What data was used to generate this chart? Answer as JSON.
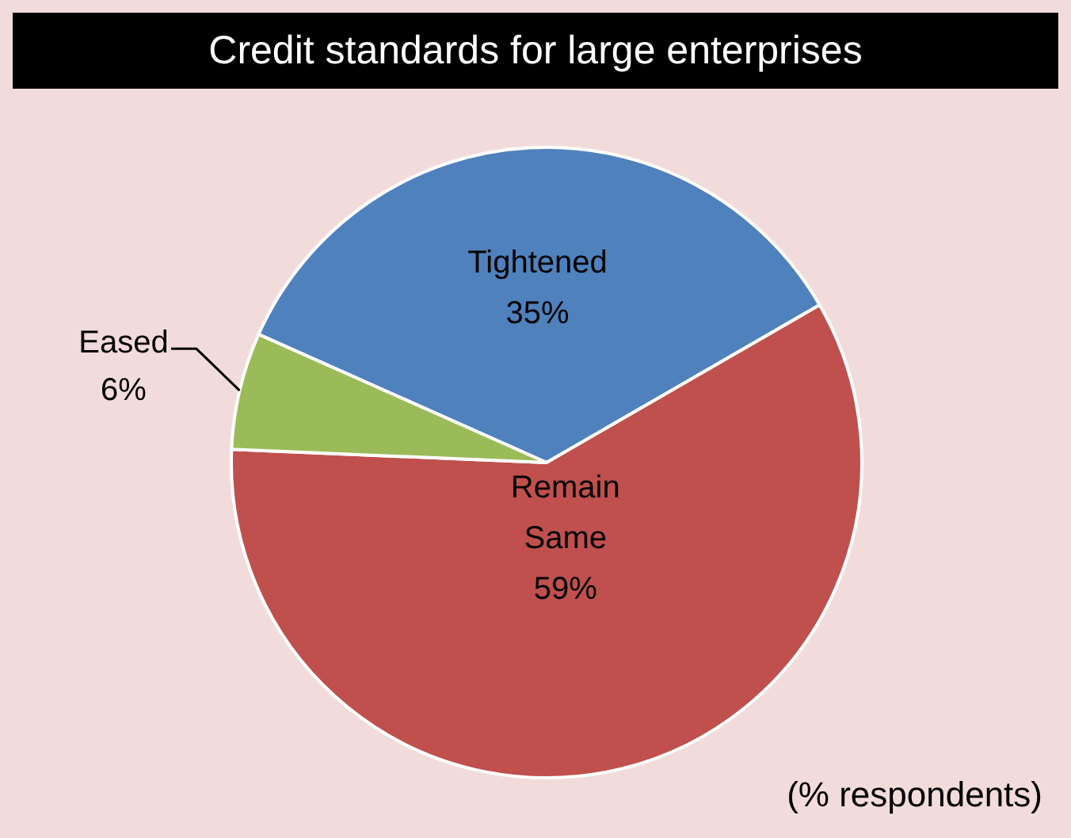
{
  "chart_data": {
    "type": "pie",
    "title": "Credit standards for large enterprises",
    "categories": [
      "Tightened",
      "Remain Same",
      "Eased"
    ],
    "values": [
      35,
      59,
      6
    ],
    "colors": [
      "#4f81bd",
      "#c0504d",
      "#9bbb59"
    ],
    "value_labels": [
      "35%",
      "59%",
      "6%"
    ],
    "legend": false,
    "annotations": [
      "(% respondents)"
    ]
  }
}
